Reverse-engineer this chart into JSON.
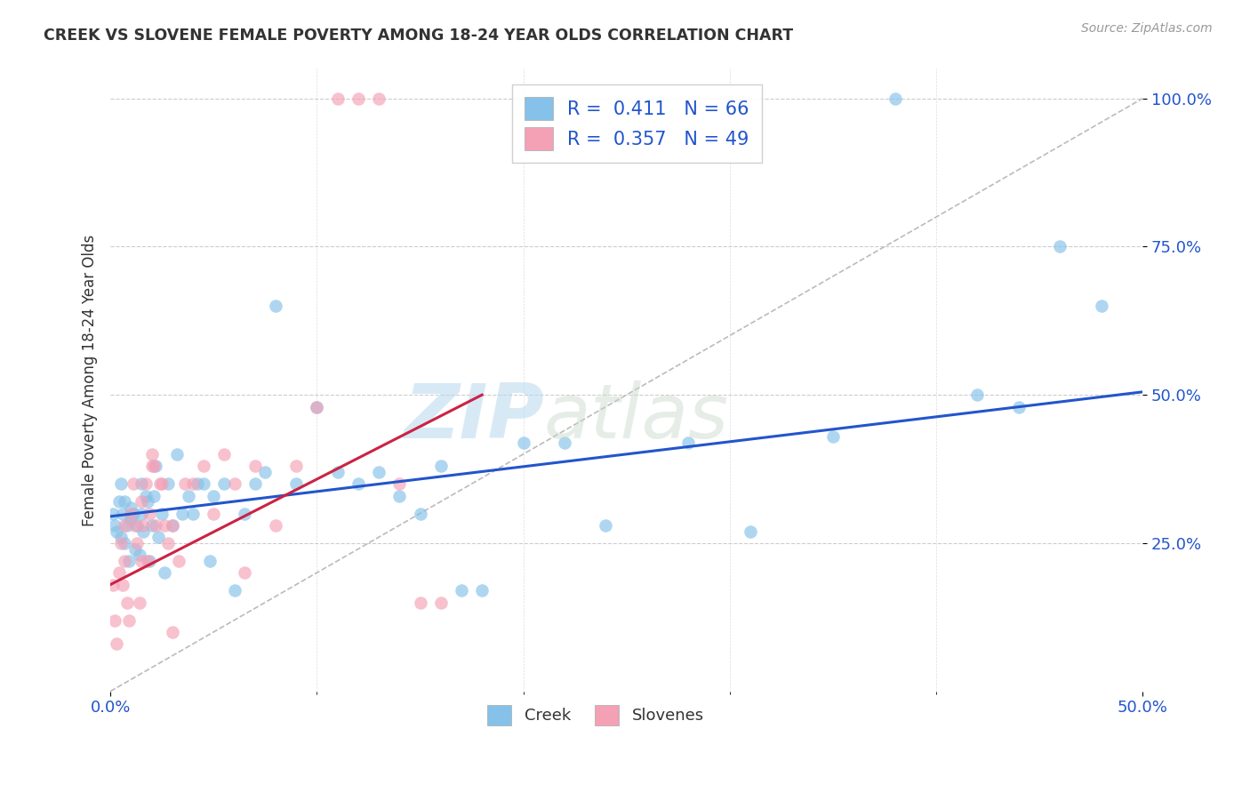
{
  "title": "CREEK VS SLOVENE FEMALE POVERTY AMONG 18-24 YEAR OLDS CORRELATION CHART",
  "source": "Source: ZipAtlas.com",
  "ylabel_label": "Female Poverty Among 18-24 Year Olds",
  "xlim": [
    0.0,
    0.5
  ],
  "ylim": [
    0.0,
    1.05
  ],
  "creek_color": "#85c1e8",
  "slovene_color": "#f4a0b5",
  "creek_line_color": "#2255cc",
  "slovene_line_color": "#cc2244",
  "diagonal_color": "#bbbbbb",
  "watermark_zip": "ZIP",
  "watermark_atlas": "atlas",
  "legend_creek_R": "0.411",
  "legend_creek_N": "66",
  "legend_slovene_R": "0.357",
  "legend_slovene_N": "49",
  "creek_line_x": [
    0.0,
    0.5
  ],
  "creek_line_y": [
    0.295,
    0.505
  ],
  "slovene_line_x": [
    0.0,
    0.18
  ],
  "slovene_line_y": [
    0.18,
    0.5
  ],
  "creek_x": [
    0.001,
    0.002,
    0.003,
    0.004,
    0.005,
    0.005,
    0.006,
    0.007,
    0.007,
    0.008,
    0.009,
    0.01,
    0.01,
    0.011,
    0.012,
    0.013,
    0.014,
    0.015,
    0.015,
    0.016,
    0.017,
    0.018,
    0.019,
    0.02,
    0.021,
    0.022,
    0.023,
    0.025,
    0.026,
    0.028,
    0.03,
    0.032,
    0.035,
    0.038,
    0.04,
    0.042,
    0.045,
    0.048,
    0.05,
    0.055,
    0.06,
    0.065,
    0.07,
    0.075,
    0.08,
    0.09,
    0.1,
    0.11,
    0.12,
    0.13,
    0.14,
    0.15,
    0.16,
    0.17,
    0.18,
    0.2,
    0.22,
    0.24,
    0.28,
    0.31,
    0.35,
    0.38,
    0.42,
    0.44,
    0.46,
    0.48
  ],
  "creek_y": [
    0.3,
    0.28,
    0.27,
    0.32,
    0.26,
    0.35,
    0.3,
    0.32,
    0.25,
    0.28,
    0.22,
    0.29,
    0.31,
    0.3,
    0.24,
    0.28,
    0.23,
    0.3,
    0.35,
    0.27,
    0.33,
    0.32,
    0.22,
    0.28,
    0.33,
    0.38,
    0.26,
    0.3,
    0.2,
    0.35,
    0.28,
    0.4,
    0.3,
    0.33,
    0.3,
    0.35,
    0.35,
    0.22,
    0.33,
    0.35,
    0.17,
    0.3,
    0.35,
    0.37,
    0.65,
    0.35,
    0.48,
    0.37,
    0.35,
    0.37,
    0.33,
    0.3,
    0.38,
    0.17,
    0.17,
    0.42,
    0.42,
    0.28,
    0.42,
    0.27,
    0.43,
    1.0,
    0.5,
    0.48,
    0.75,
    0.65
  ],
  "slovene_x": [
    0.001,
    0.002,
    0.003,
    0.004,
    0.005,
    0.006,
    0.007,
    0.007,
    0.008,
    0.009,
    0.01,
    0.011,
    0.012,
    0.013,
    0.014,
    0.015,
    0.015,
    0.016,
    0.017,
    0.018,
    0.019,
    0.02,
    0.021,
    0.022,
    0.024,
    0.026,
    0.028,
    0.03,
    0.033,
    0.036,
    0.04,
    0.045,
    0.05,
    0.055,
    0.06,
    0.065,
    0.07,
    0.08,
    0.09,
    0.1,
    0.11,
    0.12,
    0.13,
    0.14,
    0.15,
    0.16,
    0.02,
    0.025,
    0.03
  ],
  "slovene_y": [
    0.18,
    0.12,
    0.08,
    0.2,
    0.25,
    0.18,
    0.28,
    0.22,
    0.15,
    0.12,
    0.3,
    0.35,
    0.28,
    0.25,
    0.15,
    0.32,
    0.22,
    0.28,
    0.35,
    0.22,
    0.3,
    0.4,
    0.38,
    0.28,
    0.35,
    0.28,
    0.25,
    0.28,
    0.22,
    0.35,
    0.35,
    0.38,
    0.3,
    0.4,
    0.35,
    0.2,
    0.38,
    0.28,
    0.38,
    0.48,
    1.0,
    1.0,
    1.0,
    0.35,
    0.15,
    0.15,
    0.38,
    0.35,
    0.1
  ]
}
